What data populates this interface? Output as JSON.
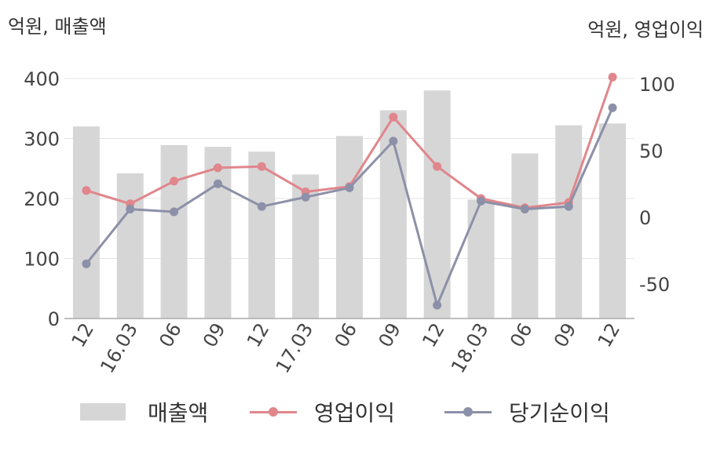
{
  "units": {
    "left": "억원, 매출액",
    "right": "억원, 영업이익"
  },
  "legend": {
    "revenue": "매출액",
    "operating": "영업이익",
    "net": "당기순이익"
  },
  "colors": {
    "bar": "#d6d6d6",
    "operating": "#e0868c",
    "net": "#8c90a8",
    "grid": "#e6e6e6",
    "axis": "#aaaaaa",
    "tick": "#444444"
  },
  "chart_data": {
    "type": "bar+line",
    "categories": [
      "12",
      "16.03",
      "06",
      "09",
      "12",
      "17.03",
      "06",
      "09",
      "12",
      "18.03",
      "06",
      "09",
      "12"
    ],
    "y_left": {
      "ticks": [
        "0",
        "100",
        "200",
        "300",
        "400"
      ],
      "range": [
        0,
        400
      ]
    },
    "y_right": {
      "ticks": [
        "-50",
        "0",
        "50",
        "100"
      ],
      "range": [
        -76,
        104
      ]
    },
    "series": [
      {
        "name": "매출액",
        "kind": "bar",
        "axis": "left",
        "values": [
          320,
          242,
          289,
          286,
          278,
          240,
          304,
          347,
          380,
          198,
          275,
          322,
          325
        ]
      },
      {
        "name": "영업이익",
        "kind": "line",
        "axis": "right",
        "values": [
          20,
          10,
          27,
          37,
          38,
          19,
          23,
          75,
          38,
          14,
          7,
          11,
          105
        ]
      },
      {
        "name": "당기순이익",
        "kind": "line",
        "axis": "right",
        "values": [
          -35,
          6,
          4,
          25,
          8,
          15,
          22,
          57,
          -66,
          12,
          6,
          8,
          82
        ]
      }
    ]
  }
}
